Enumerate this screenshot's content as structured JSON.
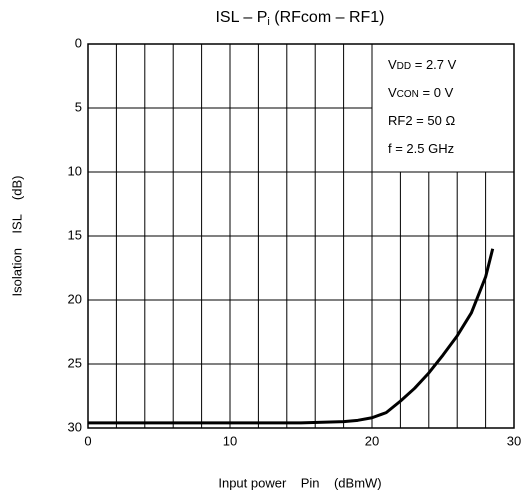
{
  "chart_data": {
    "type": "line",
    "title": [
      "ISL – P",
      "i",
      " (RFcom – RF1)"
    ],
    "x_label": "Input power    Pin    (dBmW)",
    "y_label": "Isolation    ISL    (dB)",
    "annotations": [
      [
        "V",
        "DD",
        " = 2.7 V"
      ],
      [
        "V",
        "CON",
        " = 0 V"
      ],
      [
        "RF2 = 50 Ω"
      ],
      [
        "f = 2.5 GHz"
      ]
    ],
    "xlim": [
      0,
      30
    ],
    "xticks": [
      0,
      10,
      20,
      30
    ],
    "x_minor_ticks": [
      2,
      4,
      6,
      8,
      12,
      14,
      16,
      18,
      22,
      24,
      26,
      28
    ],
    "ylim": [
      30,
      0
    ],
    "yticks": [
      0,
      5,
      10,
      15,
      20,
      25,
      30
    ],
    "grid": true,
    "series": [
      {
        "name": "ISL",
        "color": "#000000",
        "x": [
          0,
          5,
          10,
          15,
          18,
          19,
          20,
          21,
          22,
          23,
          24,
          25,
          26,
          27,
          28,
          28.5
        ],
        "values": [
          29.6,
          29.6,
          29.6,
          29.6,
          29.5,
          29.4,
          29.2,
          28.8,
          27.9,
          26.9,
          25.7,
          24.3,
          22.8,
          21.0,
          18.2,
          16.0
        ]
      }
    ]
  }
}
